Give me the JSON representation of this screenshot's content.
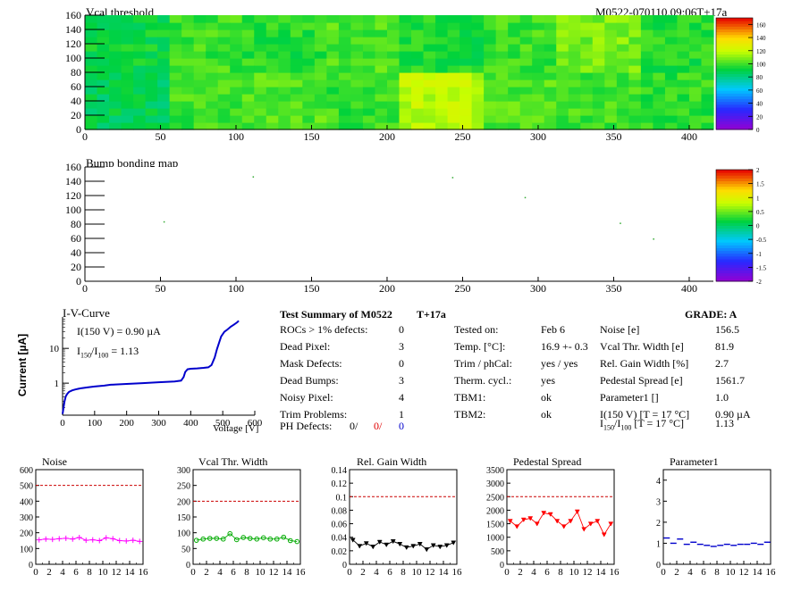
{
  "header": {
    "module_id": "M0522-070110.09:06T+17a"
  },
  "colors": {
    "noise": "#ff00ff",
    "vcal_thr_width": "#00aa00",
    "rel_gain_width": "#000000",
    "pedestal_spread": "#ff0000",
    "parameter1": "#0000cc",
    "iv_curve": "#0000cc",
    "limit_line": "#cc0000"
  },
  "chart_data": [
    {
      "id": "vcal_threshold",
      "type": "heatmap",
      "title": "Vcal threshold",
      "xlim": [
        0,
        416
      ],
      "ylim": [
        0,
        160
      ],
      "x_ticks": [
        0,
        50,
        100,
        150,
        200,
        250,
        300,
        350,
        400
      ],
      "y_ticks": [
        0,
        20,
        40,
        60,
        80,
        100,
        120,
        140,
        160
      ],
      "z_ticks": [
        0,
        20,
        40,
        60,
        80,
        100,
        120,
        140,
        160
      ],
      "zlim": [
        0,
        170
      ],
      "chip_means_top": [
        92,
        100,
        97,
        102,
        95,
        100,
        108,
        96
      ],
      "chip_means_bottom": [
        88,
        100,
        103,
        99,
        118,
        103,
        100,
        98
      ]
    },
    {
      "id": "bump_bonding_map",
      "type": "heatmap",
      "title": "Bump bonding map",
      "xlim": [
        0,
        416
      ],
      "ylim": [
        0,
        160
      ],
      "x_ticks": [
        0,
        50,
        100,
        150,
        200,
        250,
        300,
        350,
        400
      ],
      "y_ticks": [
        0,
        20,
        40,
        60,
        80,
        100,
        120,
        140,
        160
      ],
      "z_ticks": [
        -2,
        -1.5,
        -1,
        -0.5,
        0,
        0.5,
        1,
        1.5,
        2
      ],
      "zlim": [
        -2,
        2
      ],
      "points": [
        {
          "x": 111,
          "y": 147
        },
        {
          "x": 243,
          "y": 146
        },
        {
          "x": 291,
          "y": 118
        },
        {
          "x": 52,
          "y": 84
        },
        {
          "x": 354,
          "y": 82
        },
        {
          "x": 376,
          "y": 60
        }
      ]
    },
    {
      "id": "iv_curve",
      "type": "line",
      "title": "I-V-Curve",
      "xlabel": "Voltage [V]",
      "ylabel": "Current [µA]",
      "xlim": [
        0,
        600
      ],
      "y_log": true,
      "ylim": [
        0.12,
        80
      ],
      "x_ticks": [
        0,
        100,
        200,
        300,
        400,
        500,
        600
      ],
      "y_ticks": [
        1,
        10
      ],
      "annotation_1": "I(150 V) = 0.90 µA",
      "annotation_2_prefix": "I",
      "annotation_2_sub1": "150",
      "annotation_2_mid": "/I",
      "annotation_2_sub2": "100",
      "annotation_2_suffix": " =  1.13",
      "x": [
        0,
        3,
        6,
        10,
        15,
        20,
        30,
        40,
        50,
        60,
        80,
        100,
        130,
        150,
        200,
        250,
        300,
        350,
        370,
        378,
        383,
        390,
        400,
        420,
        440,
        455,
        465,
        475,
        482,
        490,
        495,
        505,
        515,
        525,
        535,
        545,
        550
      ],
      "y": [
        0.13,
        0.2,
        0.3,
        0.42,
        0.5,
        0.56,
        0.62,
        0.66,
        0.69,
        0.72,
        0.76,
        0.8,
        0.85,
        0.9,
        0.95,
        1.0,
        1.06,
        1.12,
        1.18,
        1.5,
        2.1,
        2.5,
        2.6,
        2.65,
        2.75,
        2.85,
        3.3,
        5.5,
        9.5,
        16,
        22,
        30,
        35,
        42,
        48,
        56,
        62
      ]
    },
    {
      "id": "noise",
      "type": "scatter",
      "title": "Noise",
      "xlim": [
        0,
        16
      ],
      "ylim": [
        0,
        600
      ],
      "x_ticks": [
        0,
        2,
        4,
        6,
        8,
        10,
        12,
        14,
        16
      ],
      "y_ticks": [
        0,
        100,
        200,
        300,
        400,
        500,
        600
      ],
      "limit": 500,
      "marker": "plus",
      "x": [
        0.5,
        1.5,
        2.5,
        3.5,
        4.5,
        5.5,
        6.5,
        7.5,
        8.5,
        9.5,
        10.5,
        11.5,
        12.5,
        13.5,
        14.5,
        15.5
      ],
      "y": [
        155,
        160,
        158,
        162,
        165,
        160,
        170,
        152,
        155,
        150,
        168,
        162,
        150,
        148,
        152,
        145
      ]
    },
    {
      "id": "vcal_thr_width",
      "type": "scatter",
      "title": "Vcal Thr. Width",
      "xlim": [
        0,
        16
      ],
      "ylim": [
        0,
        300
      ],
      "x_ticks": [
        0,
        2,
        4,
        6,
        8,
        10,
        12,
        14,
        16
      ],
      "y_ticks": [
        0,
        50,
        100,
        150,
        200,
        250,
        300
      ],
      "limit": 200,
      "marker": "circle",
      "x": [
        0.5,
        1.5,
        2.5,
        3.5,
        4.5,
        5.5,
        6.5,
        7.5,
        8.5,
        9.5,
        10.5,
        11.5,
        12.5,
        13.5,
        14.5,
        15.5
      ],
      "y": [
        76,
        80,
        82,
        82,
        80,
        97,
        78,
        85,
        82,
        80,
        84,
        80,
        80,
        86,
        75,
        72
      ]
    },
    {
      "id": "rel_gain_width",
      "type": "scatter",
      "title": "Rel. Gain Width",
      "xlim": [
        0,
        16
      ],
      "ylim": [
        0,
        0.14
      ],
      "x_ticks": [
        0,
        2,
        4,
        6,
        8,
        10,
        12,
        14,
        16
      ],
      "y_ticks": [
        0,
        0.02,
        0.04,
        0.06,
        0.08,
        0.1,
        0.12,
        0.14
      ],
      "limit": 0.1,
      "marker": "triangle",
      "x": [
        0.5,
        1.5,
        2.5,
        3.5,
        4.5,
        5.5,
        6.5,
        7.5,
        8.5,
        9.5,
        10.5,
        11.5,
        12.5,
        13.5,
        14.5,
        15.5
      ],
      "y": [
        0.036,
        0.027,
        0.031,
        0.026,
        0.033,
        0.029,
        0.034,
        0.03,
        0.025,
        0.027,
        0.03,
        0.022,
        0.028,
        0.026,
        0.028,
        0.032
      ]
    },
    {
      "id": "pedestal_spread",
      "type": "scatter",
      "title": "Pedestal Spread",
      "xlim": [
        0,
        16
      ],
      "ylim": [
        0,
        3500
      ],
      "x_ticks": [
        0,
        2,
        4,
        6,
        8,
        10,
        12,
        14,
        16
      ],
      "y_ticks": [
        0,
        500,
        1000,
        1500,
        2000,
        2500,
        3000,
        3500
      ],
      "limit": 2500,
      "marker": "triangle",
      "x": [
        0.5,
        1.5,
        2.5,
        3.5,
        4.5,
        5.5,
        6.5,
        7.5,
        8.5,
        9.5,
        10.5,
        11.5,
        12.5,
        13.5,
        14.5,
        15.5
      ],
      "y": [
        1600,
        1400,
        1650,
        1700,
        1500,
        1900,
        1850,
        1600,
        1400,
        1600,
        1950,
        1300,
        1500,
        1600,
        1100,
        1500
      ]
    },
    {
      "id": "parameter1",
      "type": "scatter",
      "title": "Parameter1",
      "xlim": [
        0,
        16
      ],
      "ylim": [
        0,
        4.5
      ],
      "x_ticks": [
        0,
        2,
        4,
        6,
        8,
        10,
        12,
        14,
        16
      ],
      "y_ticks": [
        0,
        1,
        2,
        3,
        4
      ],
      "marker": "hbar",
      "x": [
        0.5,
        1.5,
        2.5,
        3.5,
        4.5,
        5.5,
        6.5,
        7.5,
        8.5,
        9.5,
        10.5,
        11.5,
        12.5,
        13.5,
        14.5,
        15.5
      ],
      "y": [
        1.25,
        1.0,
        1.2,
        0.95,
        1.05,
        0.95,
        0.9,
        0.85,
        0.9,
        0.95,
        0.9,
        0.95,
        0.95,
        1.0,
        0.95,
        1.05
      ]
    }
  ],
  "summary": {
    "title": "Test Summary of M0522",
    "tag": "T+17a",
    "grade": "GRADE:  A",
    "left_labels": [
      "ROCs > 1% defects:",
      "Dead Pixel:",
      "Mask Defects:",
      "Dead Bumps:",
      "Noisy Pixel:",
      "Trim Problems:"
    ],
    "left_values": [
      "0",
      "3",
      "0",
      "3",
      "4",
      "1"
    ],
    "ph_label": "PH Defects:",
    "ph_values": [
      "0/",
      "0/",
      "0"
    ],
    "mid_labels": [
      "Tested on:",
      "Temp. [°C]:",
      "Trim / phCal:",
      "Therm. cycl.:",
      "TBM1:",
      "TBM2:"
    ],
    "mid_values": [
      "Feb 6",
      "16.9 +- 0.3",
      "yes / yes",
      "yes",
      "ok",
      "ok"
    ],
    "right_labels": [
      "Noise [e]",
      "Vcal Thr. Width [e]",
      "Rel. Gain Width [%]",
      "Pedestal Spread [e]",
      "Parameter1 []",
      "I(150 V) [T = 17 °C]"
    ],
    "right_values": [
      "156.5",
      "81.9",
      "2.7",
      "1561.7",
      "1.0",
      "0.90 µA",
      "1.13"
    ],
    "ratio_label_prefix": "I",
    "ratio_label_sub1": "150",
    "ratio_label_mid": "/I",
    "ratio_label_sub2": "100",
    "ratio_label_suffix": "  [T = 17 °C]"
  }
}
